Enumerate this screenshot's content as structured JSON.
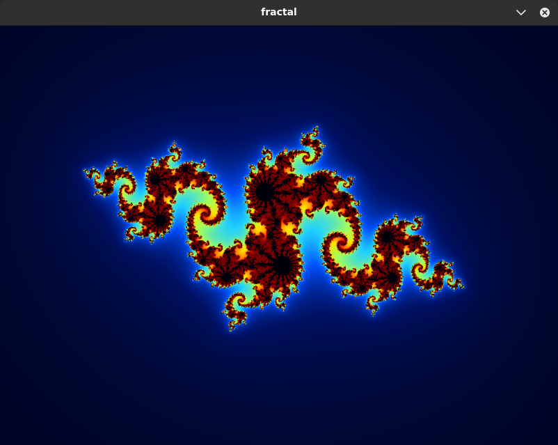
{
  "window": {
    "title": "fractal"
  },
  "titlebar": {
    "minimize_icon": "chevron-down-icon",
    "close_icon": "close-icon"
  },
  "fractal": {
    "kind": "julia-set",
    "palette": [
      "#000008",
      "#001060",
      "#0050ff",
      "#20d0ff",
      "#a0ff60",
      "#ffe000",
      "#ff3000",
      "#800000"
    ]
  }
}
